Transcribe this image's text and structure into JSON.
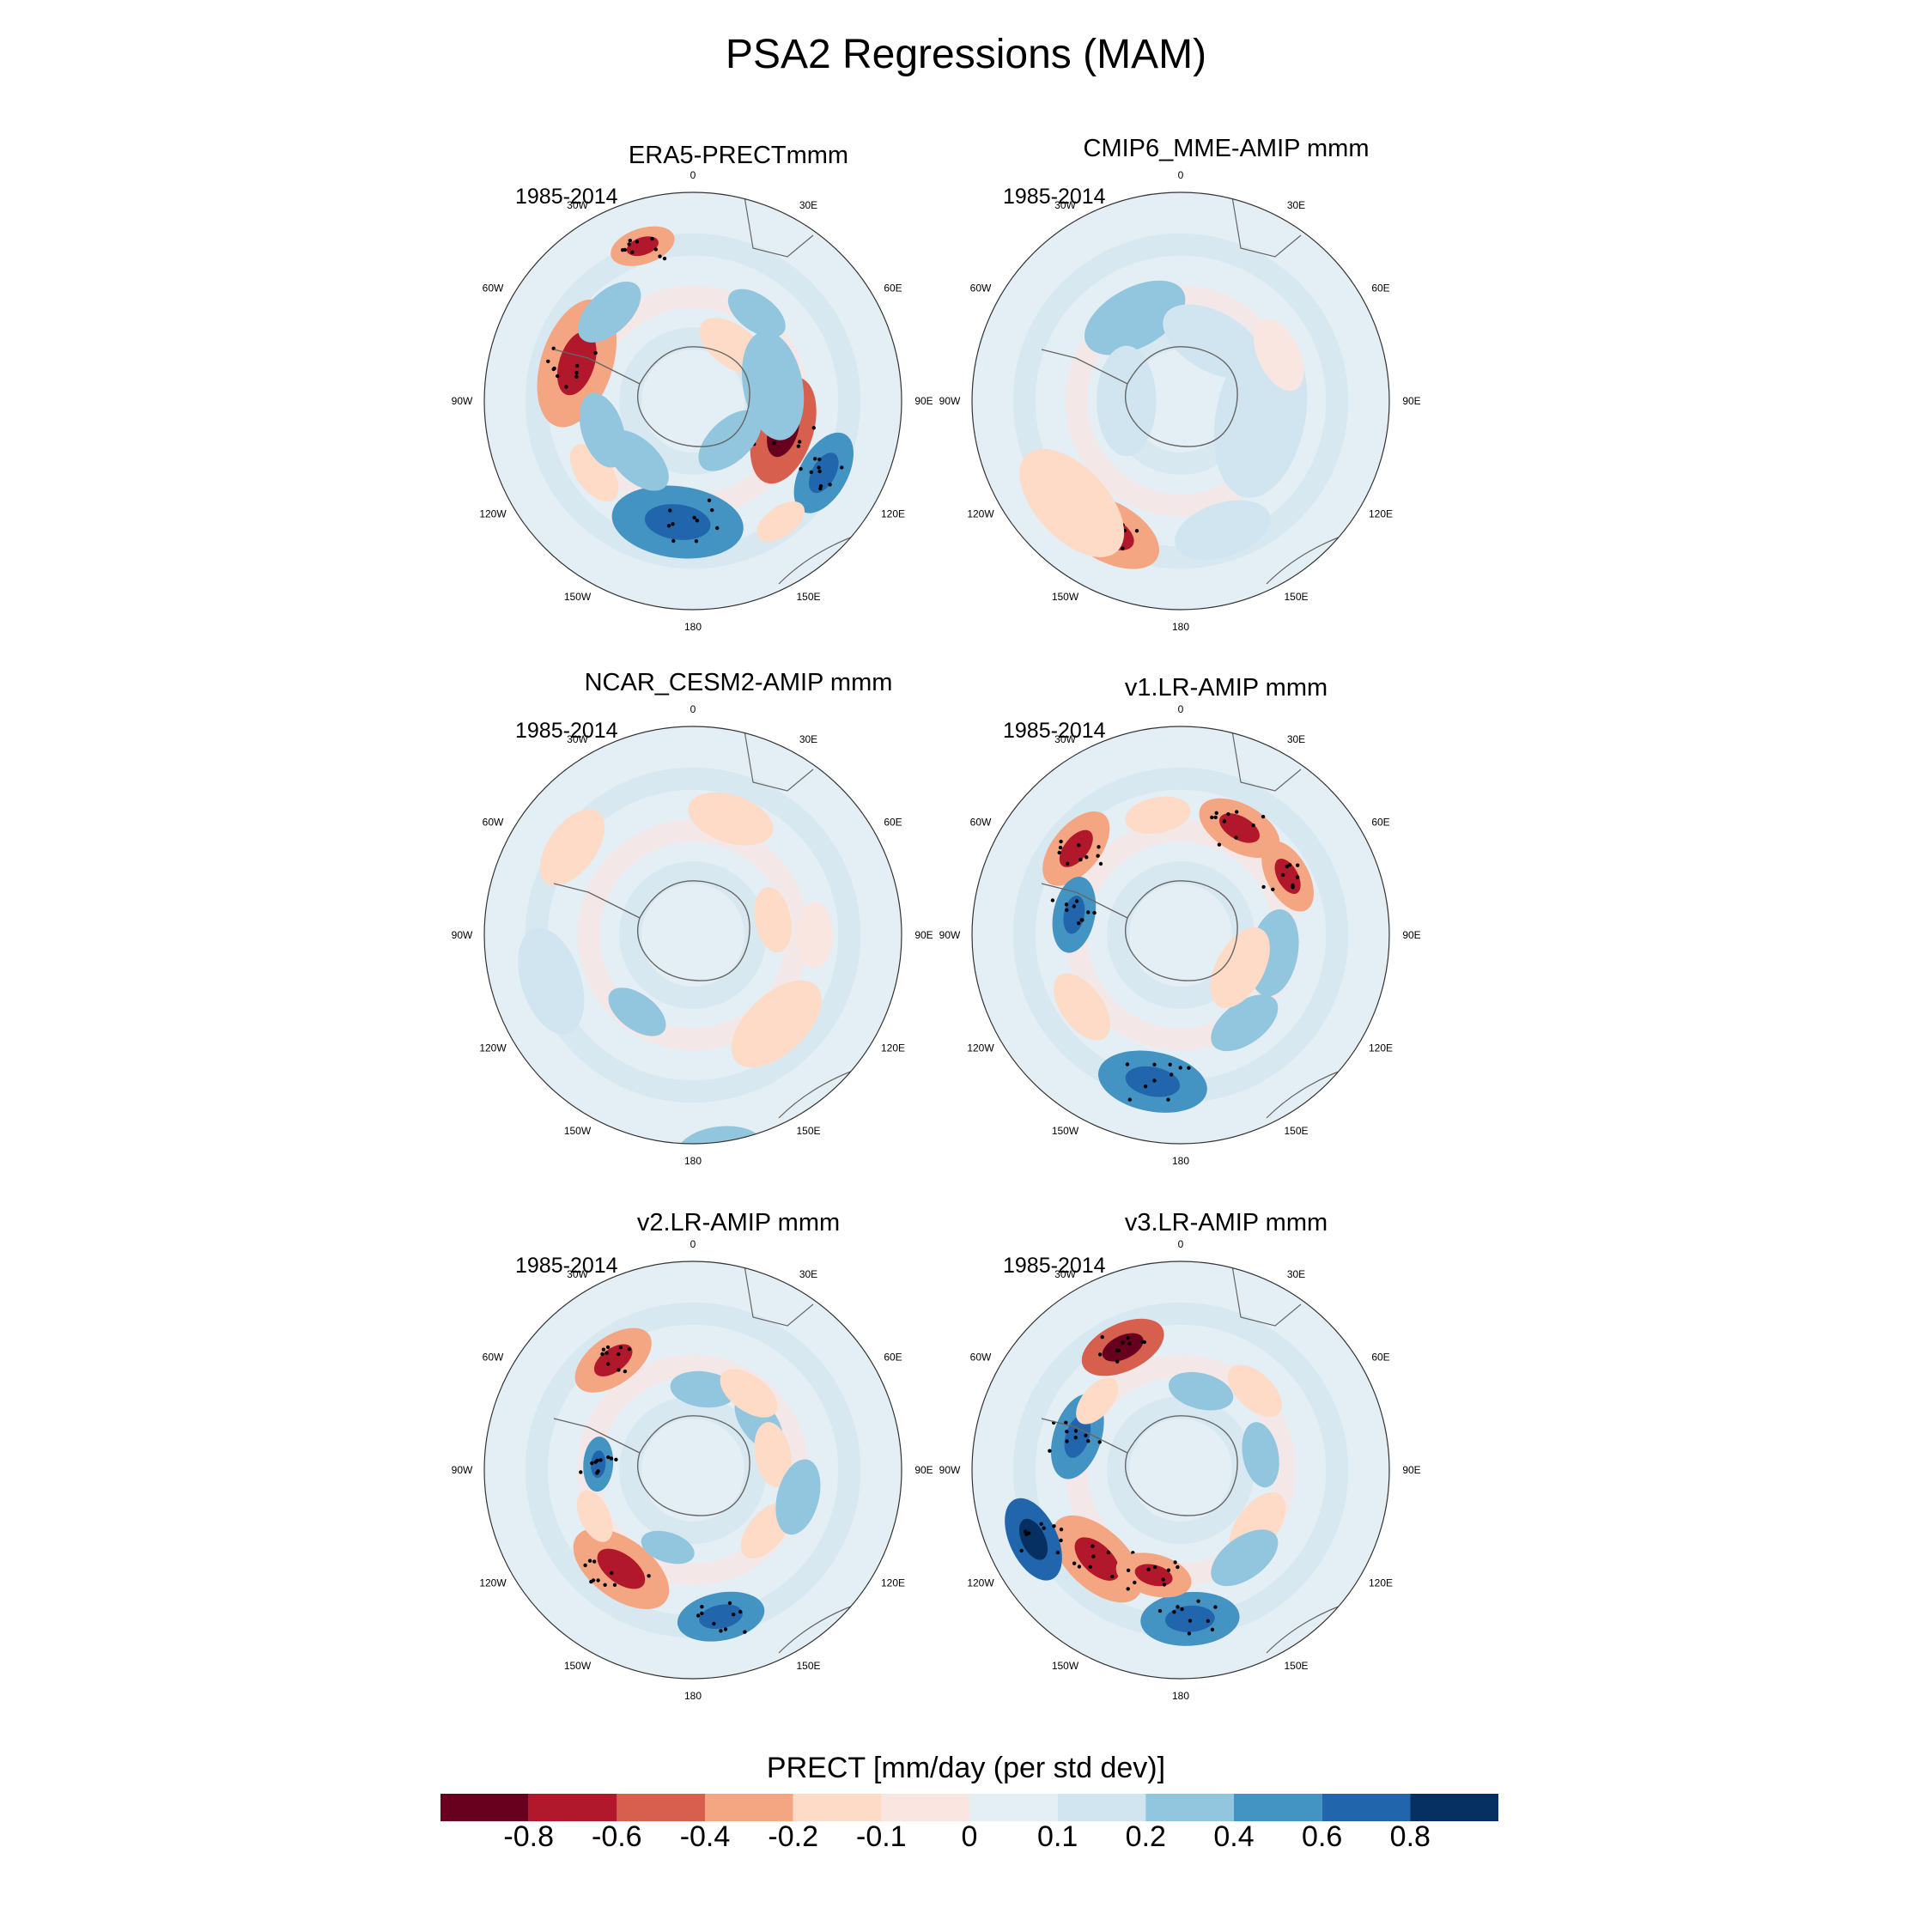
{
  "figure": {
    "title": "PSA2 Regressions (MAM)"
  },
  "panels": [
    {
      "id": "era5",
      "title": "ERA5-PRECTmmm",
      "years": "1985-2014"
    },
    {
      "id": "cmip6",
      "title": "CMIP6_MME-AMIP  mmm",
      "years": "1985-2014"
    },
    {
      "id": "cesm2",
      "title": "NCAR_CESM2-AMIP  mmm",
      "years": "1985-2014"
    },
    {
      "id": "v1",
      "title": "v1.LR-AMIP  mmm",
      "years": "1985-2014"
    },
    {
      "id": "v2",
      "title": "v2.LR-AMIP  mmm",
      "years": "1985-2014"
    },
    {
      "id": "v3",
      "title": "v3.LR-AMIP  mmm",
      "years": "1985-2014"
    }
  ],
  "longitude_labels": [
    "0",
    "30E",
    "60E",
    "90E",
    "120E",
    "150E",
    "180",
    "150W",
    "120W",
    "90W",
    "60W",
    "30W"
  ],
  "colorbar": {
    "title": "PRECT [mm/day (per std dev)]",
    "tick_labels": [
      "-0.8",
      "-0.6",
      "-0.4",
      "-0.2",
      "-0.1",
      "0",
      "0.1",
      "0.2",
      "0.4",
      "0.6",
      "0.8"
    ],
    "colors": [
      "#67001f",
      "#b2182b",
      "#d6604d",
      "#f4a582",
      "#fddbc7",
      "#f9e6e1",
      "#e4eef5",
      "#d1e5f0",
      "#92c5de",
      "#4393c3",
      "#2166ac",
      "#053061"
    ]
  },
  "chart_data": {
    "type": "heatmap",
    "title": "PSA2 Regressions (MAM)",
    "projection": "south polar stereographic",
    "variable": "PRECT",
    "units": "mm/day (per std dev)",
    "levels": [
      -0.8,
      -0.6,
      -0.4,
      -0.2,
      -0.1,
      0,
      0.1,
      0.2,
      0.4,
      0.6,
      0.8
    ],
    "features": [
      {
        "panel": "era5",
        "blobs": [
          [
            0.3,
            -0.6,
            0.1,
            0.35
          ],
          [
            0.33,
            0.4,
            0.08,
            0.55
          ],
          [
            0.8,
            -0.4,
            0.12,
            0.45
          ],
          [
            0.52,
            0.4,
            0.12,
            0.45
          ],
          [
            0.1,
            -0.2,
            0.07,
            0.25
          ],
          [
            0.88,
            0.2,
            0.07,
            0.45
          ],
          [
            0.22,
            0.2,
            0.1,
            0.3
          ],
          [
            0.62,
            0.2,
            0.07,
            0.3
          ],
          [
            0.65,
            -0.2,
            0.06,
            0.45
          ],
          [
            0.7,
            0.2,
            0.07,
            0.35
          ],
          [
            0.38,
            0.2,
            0.07,
            0.2
          ],
          [
            0.95,
            -0.4,
            0.06,
            0.6
          ],
          [
            0.1,
            0.2,
            0.06,
            0.4
          ],
          [
            0.4,
            -0.2,
            0.05,
            0.55
          ]
        ]
      },
      {
        "panel": "cmip6",
        "blobs": [
          [
            0.58,
            -0.4,
            0.1,
            0.55
          ],
          [
            0.63,
            -0.2,
            0.12,
            0.55
          ],
          [
            0.92,
            0.2,
            0.1,
            0.35
          ],
          [
            0.28,
            0.1,
            0.15,
            0.3
          ],
          [
            0.08,
            0.1,
            0.1,
            0.25
          ],
          [
            0.18,
            -0.1,
            0.07,
            0.4
          ],
          [
            0.75,
            0.1,
            0.1,
            0.2
          ],
          [
            0.45,
            0.1,
            0.09,
            0.5
          ]
        ]
      },
      {
        "panel": "cesm2",
        "blobs": [
          [
            0.05,
            -0.2,
            0.08,
            0.45
          ],
          [
            0.7,
            0.1,
            0.1,
            0.55
          ],
          [
            0.48,
            0.2,
            0.08,
            0.8
          ],
          [
            0.38,
            -0.2,
            0.1,
            0.45
          ],
          [
            0.85,
            -0.2,
            0.08,
            0.55
          ],
          [
            0.25,
            -0.1,
            0.06,
            0.45
          ],
          [
            0.22,
            -0.2,
            0.06,
            0.3
          ],
          [
            0.6,
            0.2,
            0.06,
            0.35
          ]
        ]
      },
      {
        "panel": "v1",
        "blobs": [
          [
            0.53,
            0.4,
            0.1,
            0.55
          ],
          [
            0.86,
            -0.4,
            0.08,
            0.5
          ],
          [
            0.08,
            -0.4,
            0.08,
            0.45
          ],
          [
            0.17,
            -0.4,
            0.07,
            0.45
          ],
          [
            0.28,
            0.2,
            0.08,
            0.35
          ],
          [
            0.4,
            0.2,
            0.07,
            0.4
          ],
          [
            0.65,
            -0.2,
            0.07,
            0.45
          ],
          [
            0.78,
            0.4,
            0.07,
            0.4
          ],
          [
            0.97,
            -0.2,
            0.06,
            0.45
          ],
          [
            0.33,
            -0.2,
            0.08,
            0.25
          ]
        ]
      },
      {
        "panel": "v2",
        "blobs": [
          [
            0.9,
            -0.4,
            0.08,
            0.5
          ],
          [
            0.6,
            -0.4,
            0.1,
            0.45
          ],
          [
            0.76,
            0.4,
            0.05,
            0.35
          ],
          [
            0.47,
            0.4,
            0.08,
            0.55
          ],
          [
            0.36,
            -0.2,
            0.06,
            0.35
          ],
          [
            0.02,
            0.2,
            0.06,
            0.3
          ],
          [
            0.15,
            0.2,
            0.06,
            0.3
          ],
          [
            0.22,
            -0.2,
            0.06,
            0.3
          ],
          [
            0.29,
            0.2,
            0.07,
            0.4
          ],
          [
            0.1,
            -0.2,
            0.06,
            0.35
          ],
          [
            0.55,
            0.2,
            0.05,
            0.3
          ],
          [
            0.68,
            -0.2,
            0.05,
            0.4
          ]
        ]
      },
      {
        "panel": "v3",
        "blobs": [
          [
            0.93,
            -0.6,
            0.08,
            0.5
          ],
          [
            0.62,
            -0.4,
            0.1,
            0.45
          ],
          [
            0.68,
            0.6,
            0.08,
            0.6
          ],
          [
            0.49,
            0.4,
            0.09,
            0.55
          ],
          [
            0.54,
            -0.4,
            0.07,
            0.4
          ],
          [
            0.8,
            0.4,
            0.08,
            0.4
          ],
          [
            0.35,
            -0.2,
            0.07,
            0.35
          ],
          [
            0.12,
            -0.2,
            0.06,
            0.4
          ],
          [
            0.4,
            0.2,
            0.07,
            0.4
          ],
          [
            0.86,
            -0.2,
            0.05,
            0.4
          ],
          [
            0.04,
            0.2,
            0.06,
            0.3
          ],
          [
            0.22,
            0.2,
            0.06,
            0.3
          ]
        ]
      }
    ]
  }
}
